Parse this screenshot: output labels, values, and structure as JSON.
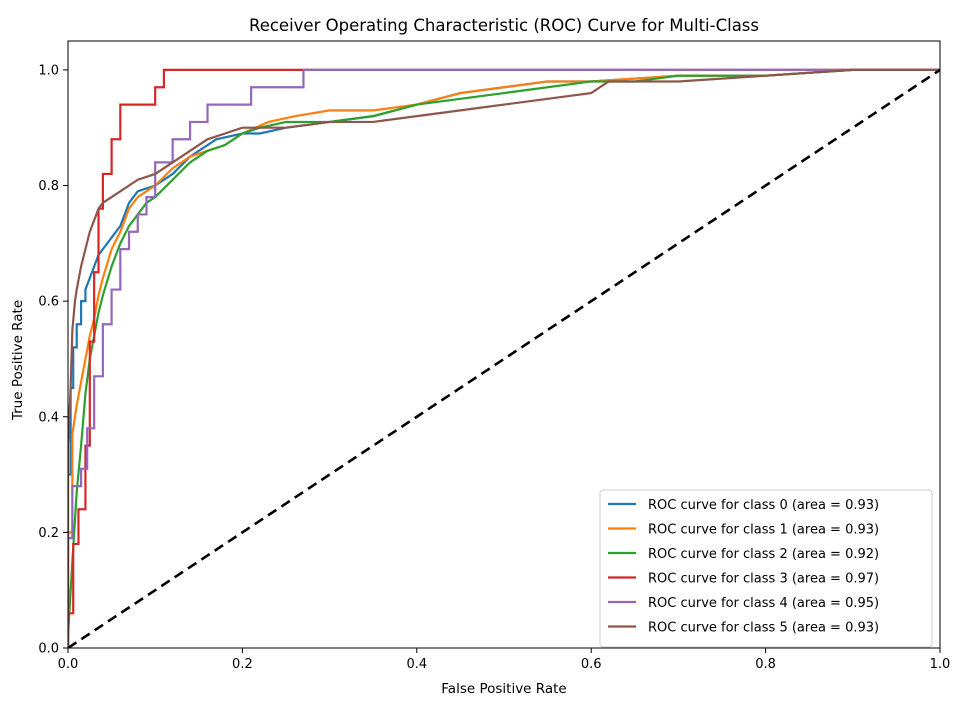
{
  "chart_data": {
    "type": "line",
    "title": "Receiver Operating Characteristic (ROC) Curve for Multi-Class",
    "xlabel": "False Positive Rate",
    "ylabel": "True Positive Rate",
    "xlim": [
      0.0,
      1.0
    ],
    "ylim": [
      0.0,
      1.05
    ],
    "xticks": [
      "0.0",
      "0.2",
      "0.4",
      "0.6",
      "0.8",
      "1.0"
    ],
    "yticks": [
      "0.0",
      "0.2",
      "0.4",
      "0.6",
      "0.8",
      "1.0"
    ],
    "grid": false,
    "legend_position": "lower-right",
    "diagonal": {
      "x": [
        0,
        1
      ],
      "y": [
        0,
        1
      ],
      "color": "#000000",
      "style": "dashed"
    },
    "series": [
      {
        "name": "ROC curve for class 0 (area = 0.93)",
        "color": "#1f77b4",
        "x": [
          0,
          0,
          0.003,
          0.003,
          0.006,
          0.006,
          0.01,
          0.01,
          0.015,
          0.015,
          0.02,
          0.02,
          0.025,
          0.03,
          0.035,
          0.04,
          0.05,
          0.06,
          0.07,
          0.08,
          0.1,
          0.12,
          0.14,
          0.17,
          0.2,
          0.22,
          0.25,
          0.3,
          0.35,
          0.4,
          0.45,
          0.5,
          0.55,
          0.6,
          0.7,
          0.8,
          0.9,
          1.0
        ],
        "y": [
          0,
          0.3,
          0.3,
          0.45,
          0.45,
          0.52,
          0.52,
          0.56,
          0.56,
          0.6,
          0.6,
          0.62,
          0.64,
          0.66,
          0.68,
          0.69,
          0.71,
          0.73,
          0.77,
          0.79,
          0.8,
          0.82,
          0.85,
          0.88,
          0.89,
          0.89,
          0.9,
          0.91,
          0.92,
          0.94,
          0.96,
          0.97,
          0.98,
          0.98,
          0.99,
          0.99,
          1.0,
          1.0
        ]
      },
      {
        "name": "ROC curve for class 1 (area = 0.93)",
        "color": "#ff7f0e",
        "x": [
          0,
          0,
          0.005,
          0.005,
          0.01,
          0.015,
          0.02,
          0.025,
          0.03,
          0.035,
          0.04,
          0.05,
          0.06,
          0.07,
          0.08,
          0.1,
          0.12,
          0.14,
          0.16,
          0.18,
          0.2,
          0.23,
          0.26,
          0.3,
          0.35,
          0.4,
          0.45,
          0.5,
          0.55,
          0.6,
          0.7,
          0.8,
          0.9,
          1.0
        ],
        "y": [
          0,
          0.2,
          0.2,
          0.37,
          0.42,
          0.46,
          0.5,
          0.54,
          0.57,
          0.61,
          0.64,
          0.69,
          0.72,
          0.76,
          0.78,
          0.8,
          0.83,
          0.85,
          0.86,
          0.87,
          0.89,
          0.91,
          0.92,
          0.93,
          0.93,
          0.94,
          0.96,
          0.97,
          0.98,
          0.98,
          0.99,
          0.99,
          1.0,
          1.0
        ]
      },
      {
        "name": "ROC curve for class 2 (area = 0.92)",
        "color": "#2ca02c",
        "x": [
          0,
          0,
          0.005,
          0.01,
          0.015,
          0.02,
          0.025,
          0.03,
          0.035,
          0.04,
          0.05,
          0.06,
          0.07,
          0.08,
          0.09,
          0.1,
          0.12,
          0.14,
          0.16,
          0.18,
          0.2,
          0.22,
          0.25,
          0.3,
          0.35,
          0.4,
          0.45,
          0.5,
          0.55,
          0.6,
          0.65,
          0.7,
          0.8,
          0.9,
          1.0
        ],
        "y": [
          0,
          0.02,
          0.15,
          0.27,
          0.35,
          0.44,
          0.5,
          0.54,
          0.58,
          0.61,
          0.66,
          0.7,
          0.73,
          0.75,
          0.77,
          0.78,
          0.81,
          0.84,
          0.86,
          0.87,
          0.89,
          0.9,
          0.91,
          0.91,
          0.92,
          0.94,
          0.95,
          0.96,
          0.97,
          0.98,
          0.98,
          0.99,
          0.99,
          1.0,
          1.0
        ]
      },
      {
        "name": "ROC curve for class 3 (area = 0.97)",
        "color": "#d62728",
        "x": [
          0,
          0,
          0.006,
          0.006,
          0.012,
          0.012,
          0.02,
          0.02,
          0.025,
          0.025,
          0.03,
          0.03,
          0.035,
          0.035,
          0.04,
          0.04,
          0.05,
          0.05,
          0.06,
          0.06,
          0.1,
          0.1,
          0.11,
          0.11,
          1.0
        ],
        "y": [
          0,
          0.06,
          0.06,
          0.18,
          0.18,
          0.24,
          0.24,
          0.35,
          0.35,
          0.53,
          0.53,
          0.65,
          0.65,
          0.76,
          0.76,
          0.82,
          0.82,
          0.88,
          0.88,
          0.94,
          0.94,
          0.97,
          0.97,
          1.0,
          1.0
        ]
      },
      {
        "name": "ROC curve for class 4 (area = 0.95)",
        "color": "#9467bd",
        "x": [
          0,
          0,
          0.005,
          0.005,
          0.015,
          0.015,
          0.022,
          0.022,
          0.03,
          0.03,
          0.04,
          0.04,
          0.05,
          0.05,
          0.06,
          0.06,
          0.07,
          0.07,
          0.08,
          0.08,
          0.09,
          0.09,
          0.1,
          0.1,
          0.12,
          0.12,
          0.14,
          0.14,
          0.16,
          0.16,
          0.21,
          0.21,
          0.27,
          0.27,
          0.6,
          0.9,
          1.0
        ],
        "y": [
          0,
          0.19,
          0.19,
          0.28,
          0.28,
          0.31,
          0.31,
          0.38,
          0.38,
          0.47,
          0.47,
          0.56,
          0.56,
          0.62,
          0.62,
          0.69,
          0.69,
          0.72,
          0.72,
          0.75,
          0.75,
          0.78,
          0.78,
          0.84,
          0.84,
          0.88,
          0.88,
          0.91,
          0.91,
          0.94,
          0.94,
          0.97,
          0.97,
          1.0,
          1.0,
          1.0,
          1.0
        ]
      },
      {
        "name": "ROC curve for class 5 (area = 0.93)",
        "color": "#8c564b",
        "x": [
          0,
          0,
          0.003,
          0.005,
          0.008,
          0.01,
          0.015,
          0.02,
          0.025,
          0.03,
          0.035,
          0.04,
          0.05,
          0.06,
          0.07,
          0.08,
          0.1,
          0.12,
          0.14,
          0.16,
          0.18,
          0.2,
          0.25,
          0.3,
          0.35,
          0.4,
          0.45,
          0.5,
          0.55,
          0.6,
          0.62,
          0.7,
          0.8,
          0.9,
          1.0
        ],
        "y": [
          0,
          0.35,
          0.45,
          0.55,
          0.6,
          0.62,
          0.66,
          0.69,
          0.72,
          0.74,
          0.76,
          0.77,
          0.78,
          0.79,
          0.8,
          0.81,
          0.82,
          0.84,
          0.86,
          0.88,
          0.89,
          0.9,
          0.9,
          0.91,
          0.91,
          0.92,
          0.93,
          0.94,
          0.95,
          0.96,
          0.98,
          0.98,
          0.99,
          1.0,
          1.0
        ]
      }
    ]
  }
}
